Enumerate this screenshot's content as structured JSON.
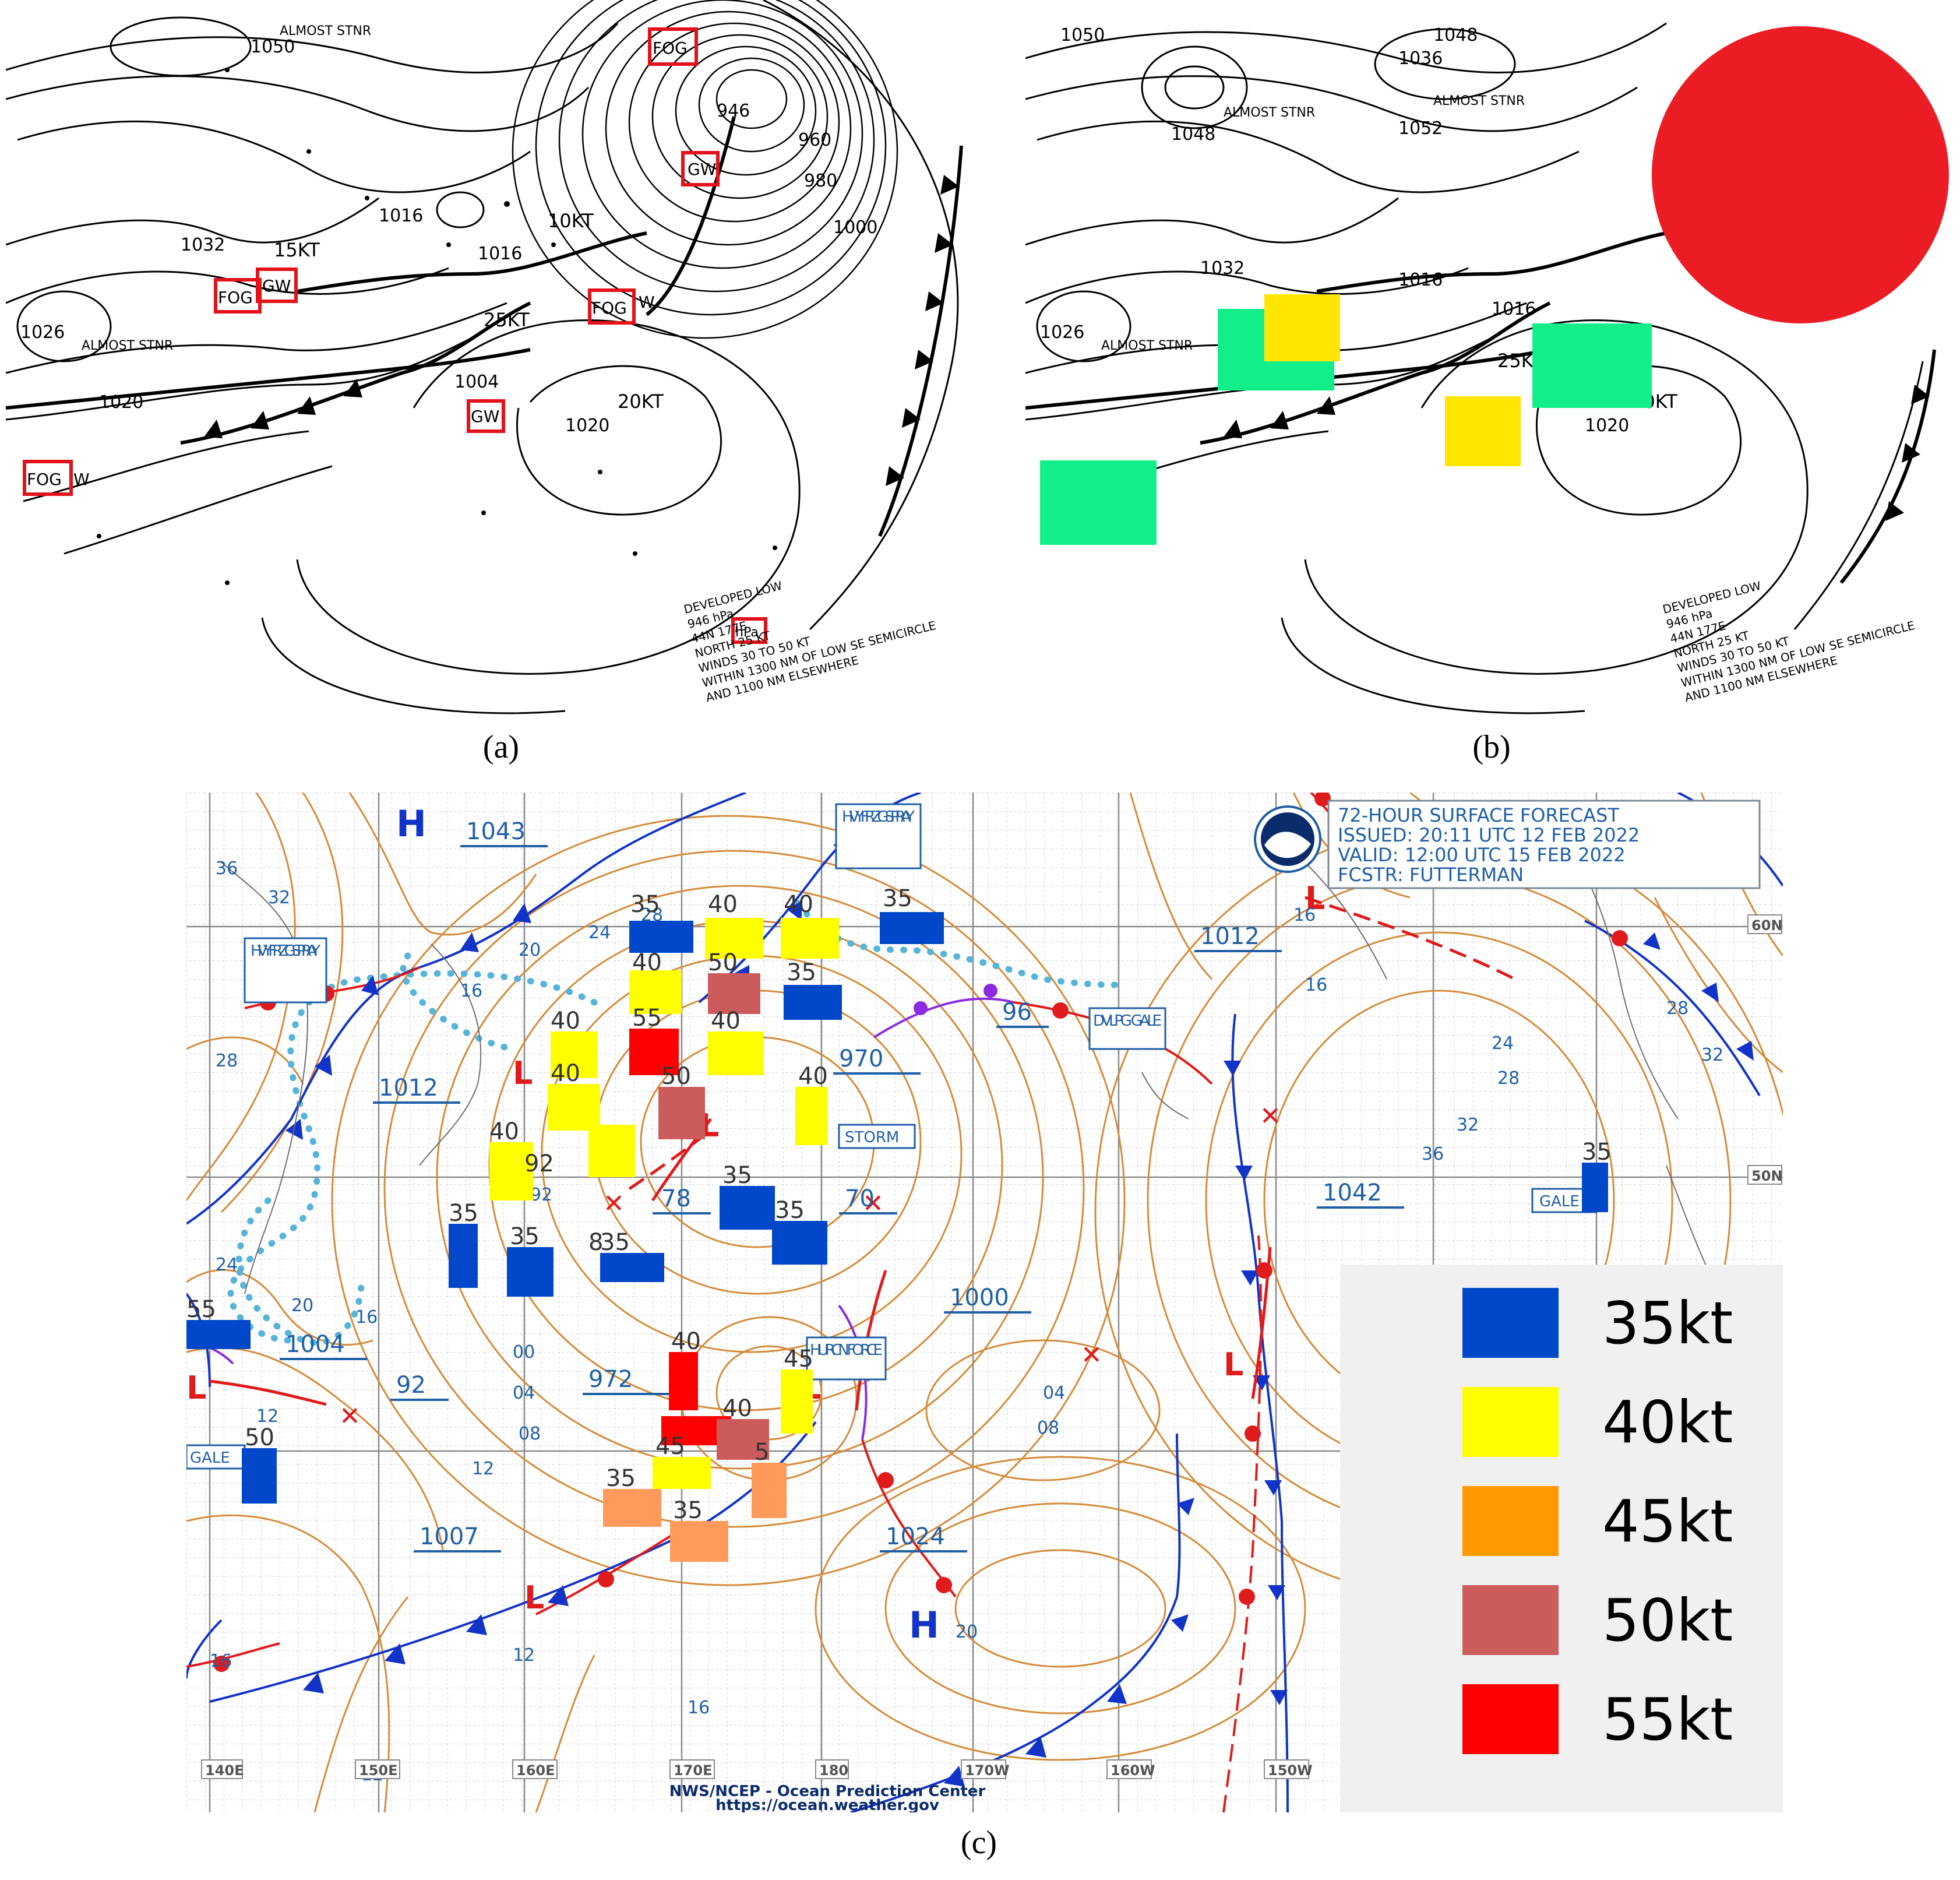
{
  "captions": {
    "a": "(a)",
    "b": "(b)",
    "c": "(c)"
  },
  "chart_a": {
    "isobar_labels": [
      "1050",
      "1032",
      "1016",
      "1016",
      "1026",
      "1020",
      "1004",
      "1020",
      "946",
      "960",
      "980",
      "1000"
    ],
    "text_labels": [
      "ALMOST STNR",
      "ALMOST STNR",
      "25KT",
      "15KT",
      "10KT",
      "25KT",
      "20KT"
    ],
    "highlight_codes": [
      "FOG",
      "GW",
      "FOG",
      "GW",
      "FOG",
      "W",
      "GW",
      "FOG",
      "W",
      "GW",
      "FOG",
      "W",
      "hPa"
    ],
    "note_lines": [
      "DEVELOPED LOW",
      "946 hPa",
      "44N 177E",
      "NORTH 25 KT",
      "WINDS 30 TO 50 KT",
      "WITHIN 1300 NM OF LOW SE SEMICIRCLE",
      "AND 1100 NM ELSEWHERE"
    ]
  },
  "chart_b": {
    "isobar_labels": [
      "1050",
      "1048",
      "1036",
      "1048",
      "1052",
      "1032",
      "1016",
      "1016",
      "1026",
      "1020"
    ],
    "text_labels": [
      "ALMOST STNR",
      "ALMOST STNR",
      "ALMOST STNR",
      "25KT",
      "20KT"
    ],
    "note_lines": [
      "DEVELOPED LOW",
      "946 hPa",
      "44N 177E",
      "NORTH 25 KT",
      "WINDS 30 TO 50 KT",
      "WITHIN 1300 NM OF LOW SE SEMICIRCLE",
      "AND 1100 NM ELSEWHERE"
    ],
    "colors": {
      "red_blob": "#ec1c24",
      "green": "#12ef8a",
      "yellow": "#ffe600"
    }
  },
  "chart_c": {
    "header": [
      "72-HOUR SURFACE FORECAST",
      "ISSUED: 20:11 UTC 12 FEB 2022",
      "VALID:  12:00 UTC 15 FEB 2022",
      "FCSTR:  FUTTERMAN"
    ],
    "credit": [
      "NWS/NCEP - Ocean Prediction Center",
      "https://ocean.weather.gov"
    ],
    "lon_labels": [
      "140E",
      "150E",
      "160E",
      "170E",
      "180",
      "170W",
      "160W",
      "150W"
    ],
    "lat_labels": [
      "60N",
      "50N"
    ],
    "pressure_boxes": [
      "1043",
      "1012",
      "970",
      "78",
      "70",
      "1012",
      "96",
      "1004",
      "92",
      "972",
      "1000",
      "1042",
      "1007",
      "1024"
    ],
    "warning_boxes": [
      "HVY FRZG SPRAY",
      "HVY FRZG SPRAY",
      "DVLPG GALE",
      "STORM",
      "HURCN FORCE",
      "GALE",
      "GALE"
    ],
    "contour_labels": [
      "36",
      "32",
      "28",
      "24",
      "20",
      "16",
      "12",
      "08",
      "04",
      "00",
      "92",
      "20",
      "16",
      "28",
      "24",
      "28",
      "32",
      "36",
      "16",
      "24",
      "20",
      "16",
      "12",
      "08",
      "04",
      "12",
      "12",
      "16"
    ],
    "high_label": "H",
    "wind_values": [
      "35",
      "40",
      "40",
      "35",
      "40",
      "50",
      "35",
      "55",
      "40",
      "50",
      "40",
      "40",
      "40",
      "40",
      "35",
      "35",
      "35",
      "35",
      "35",
      "35",
      "55",
      "50",
      "40",
      "40",
      "45",
      "45",
      "35",
      "35",
      "5",
      "92",
      "8"
    ],
    "legend": [
      {
        "label": "35kt",
        "color": "#0047c9"
      },
      {
        "label": "40kt",
        "color": "#ffff00"
      },
      {
        "label": "45kt",
        "color": "#ff9a00"
      },
      {
        "label": "50kt",
        "color": "#cc5c5c"
      },
      {
        "label": "55kt",
        "color": "#ff0000"
      }
    ],
    "colors": {
      "isobar": "#d48b3a",
      "label_blue": "#1f5fa6",
      "front_blue": "#1233c8",
      "front_red": "#e01b1b",
      "ice": "#56b4d8",
      "occluded": "#8a2be2"
    }
  }
}
